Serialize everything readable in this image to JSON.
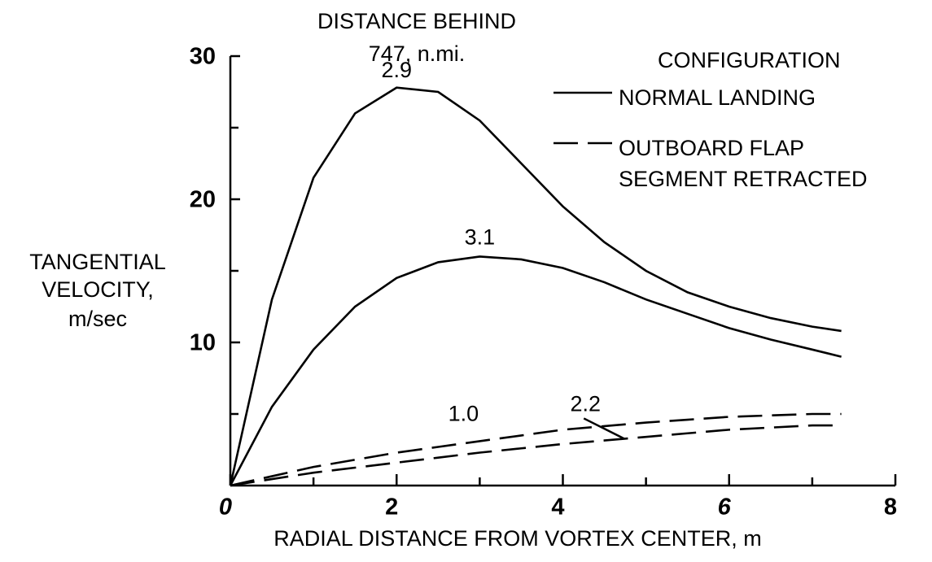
{
  "chart_data": {
    "type": "line",
    "title": [
      "DISTANCE BEHIND",
      "747, n.mi."
    ],
    "y_label": [
      "TANGENTIAL",
      "VELOCITY,",
      "m/sec"
    ],
    "x_label": "RADIAL DISTANCE  FROM VORTEX CENTER, m",
    "xlim": [
      0,
      8
    ],
    "ylim": [
      0,
      30
    ],
    "xticks": [
      0,
      2,
      4,
      6,
      8
    ],
    "xminor_ticks": [
      1,
      3,
      5,
      7
    ],
    "yticks": [
      10,
      20,
      30
    ],
    "yminor_ticks": [
      5,
      15,
      25
    ],
    "legend": {
      "title": "CONFIGURATION",
      "entries": [
        {
          "label": [
            "NORMAL LANDING"
          ],
          "style": "solid"
        },
        {
          "label": [
            "OUTBOARD FLAP",
            "SEGMENT RETRACTED"
          ],
          "style": "dashed"
        }
      ]
    },
    "x": [
      0,
      0.5,
      1,
      1.5,
      2,
      2.5,
      3,
      3.5,
      4,
      4.5,
      5,
      5.5,
      6,
      6.5,
      7,
      7.35
    ],
    "series": [
      {
        "name": "2.9",
        "style": "solid",
        "values": [
          0,
          13,
          21.5,
          26,
          27.8,
          27.5,
          25.5,
          22.5,
          19.5,
          17,
          15,
          13.5,
          12.5,
          11.7,
          11.1,
          10.8
        ]
      },
      {
        "name": "3.1",
        "style": "solid",
        "values": [
          0,
          5.5,
          9.5,
          12.5,
          14.5,
          15.6,
          16,
          15.8,
          15.2,
          14.2,
          13,
          12,
          11,
          10.2,
          9.5,
          9
        ]
      },
      {
        "name": "1.0",
        "style": "dashed",
        "values": [
          0,
          0.65,
          1.3,
          1.8,
          2.3,
          2.7,
          3.1,
          3.5,
          3.9,
          4.15,
          4.4,
          4.6,
          4.8,
          4.9,
          5,
          5
        ]
      },
      {
        "name": "2.2",
        "style": "dashed",
        "values": [
          0,
          0.45,
          0.9,
          1.25,
          1.6,
          1.95,
          2.3,
          2.6,
          2.9,
          3.15,
          3.4,
          3.65,
          3.9,
          4.05,
          4.2,
          4.2
        ]
      }
    ]
  }
}
